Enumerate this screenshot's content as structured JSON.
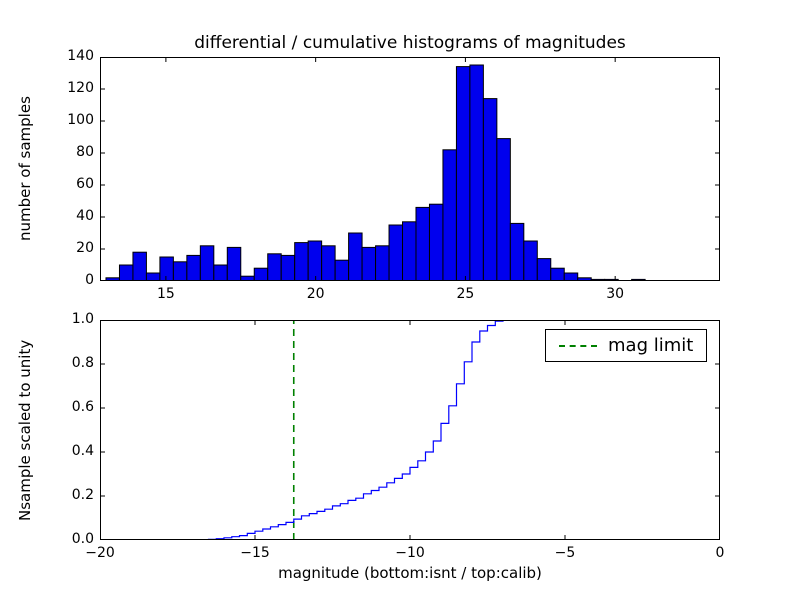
{
  "window": {
    "background": "#ffffff"
  },
  "chart_data": [
    {
      "type": "bar",
      "panel": "top",
      "title": "differential / cumulative histograms of magnitudes",
      "ylabel": "number of samples",
      "bar_fill": "#0000ee",
      "bar_edge": "#000000",
      "bin_start": 13.0,
      "bin_width": 0.45,
      "counts": [
        2,
        10,
        18,
        5,
        15,
        12,
        16,
        22,
        10,
        21,
        3,
        8,
        17,
        16,
        24,
        25,
        22,
        13,
        30,
        21,
        22,
        35,
        37,
        46,
        48,
        82,
        134,
        135,
        114,
        89,
        36,
        25,
        14,
        8,
        5,
        2,
        1,
        1,
        0,
        1
      ],
      "xlim": [
        12.8,
        33.5
      ],
      "ylim": [
        0,
        140
      ],
      "xticks": [
        15,
        20,
        25,
        30
      ],
      "xtick_labels": [
        "15",
        "20",
        "25",
        "30"
      ],
      "yticks": [
        0,
        20,
        40,
        60,
        80,
        100,
        120,
        140
      ],
      "ytick_labels": [
        "0",
        "20",
        "40",
        "60",
        "80",
        "100",
        "120",
        "140"
      ],
      "grid": false
    },
    {
      "type": "line",
      "panel": "bottom",
      "step": true,
      "ylabel": "Nsample scaled to unity",
      "xlabel": "magnitude (bottom:isnt / top:calib)",
      "line_color": "#0000ff",
      "x": [
        -16.5,
        -16.25,
        -16.0,
        -15.75,
        -15.5,
        -15.25,
        -15.0,
        -14.75,
        -14.5,
        -14.25,
        -14.0,
        -13.75,
        -13.5,
        -13.25,
        -13.0,
        -12.75,
        -12.5,
        -12.25,
        -12.0,
        -11.75,
        -11.5,
        -11.25,
        -11.0,
        -10.75,
        -10.5,
        -10.25,
        -10.0,
        -9.75,
        -9.5,
        -9.25,
        -9.0,
        -8.75,
        -8.5,
        -8.25,
        -8.0,
        -7.75,
        -7.5,
        -7.25,
        -7.0
      ],
      "y": [
        0.003,
        0.006,
        0.01,
        0.015,
        0.02,
        0.03,
        0.04,
        0.05,
        0.06,
        0.07,
        0.08,
        0.095,
        0.11,
        0.12,
        0.13,
        0.14,
        0.155,
        0.165,
        0.18,
        0.19,
        0.21,
        0.225,
        0.24,
        0.26,
        0.28,
        0.3,
        0.33,
        0.36,
        0.4,
        0.45,
        0.53,
        0.61,
        0.71,
        0.81,
        0.9,
        0.95,
        0.975,
        0.995,
        1.0
      ],
      "xlim": [
        -20,
        0
      ],
      "ylim": [
        0,
        1
      ],
      "xticks": [
        -20,
        -15,
        -10,
        -5,
        0
      ],
      "xtick_labels": [
        "−20",
        "−15",
        "−10",
        "−5",
        "0"
      ],
      "yticks": [
        0,
        0.2,
        0.4,
        0.6,
        0.8,
        1.0
      ],
      "ytick_labels": [
        "0.0",
        "0.2",
        "0.4",
        "0.6",
        "0.8",
        "1.0"
      ],
      "mag_limit_line": {
        "x": -13.75,
        "color": "#008000",
        "style": "dashed"
      },
      "legend": {
        "position": "upper right",
        "entries": [
          {
            "label": "mag limit",
            "color": "#008000",
            "style": "dashed"
          }
        ]
      },
      "grid": false
    }
  ]
}
